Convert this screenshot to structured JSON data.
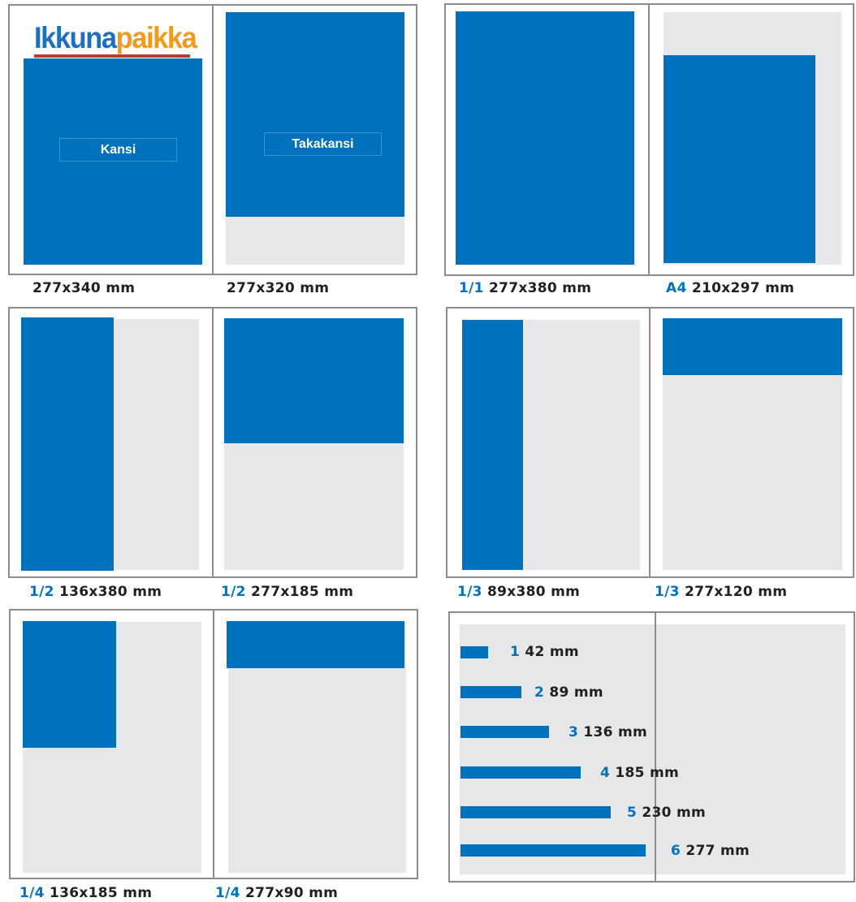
{
  "cover": {
    "logo_part1": "Ikkuna",
    "logo_part2": "paikka",
    "front_label": "Kansi",
    "back_label": "Takakansi",
    "front_size": "277x340 mm",
    "back_size": "277x320 mm"
  },
  "full_page": {
    "one_frac": "1/1",
    "one_size": "277x380 mm",
    "a4_frac": "A4",
    "a4_size": "210x297 mm"
  },
  "half_page": {
    "vertical_frac": "1/2",
    "vertical_size": "136x380 mm",
    "horizontal_frac": "1/2",
    "horizontal_size": "277x185 mm"
  },
  "third_page": {
    "vertical_frac": "1/3",
    "vertical_size": "89x380 mm",
    "horizontal_frac": "1/3",
    "horizontal_size": "277x120 mm"
  },
  "quarter_page": {
    "block_frac": "1/4",
    "block_size": "136x185 mm",
    "horizontal_frac": "1/4",
    "horizontal_size": "277x90 mm"
  },
  "columns": [
    {
      "num": "1",
      "width": "42 mm"
    },
    {
      "num": "2",
      "width": "89 mm"
    },
    {
      "num": "3",
      "width": "136 mm"
    },
    {
      "num": "4",
      "width": "185 mm"
    },
    {
      "num": "5",
      "width": "230 mm"
    },
    {
      "num": "6",
      "width": "277 mm"
    }
  ],
  "colors": {
    "accent": "#0071bc",
    "page": "#e6e7e9",
    "frame": "#8c8c8c",
    "text": "#231f20"
  }
}
